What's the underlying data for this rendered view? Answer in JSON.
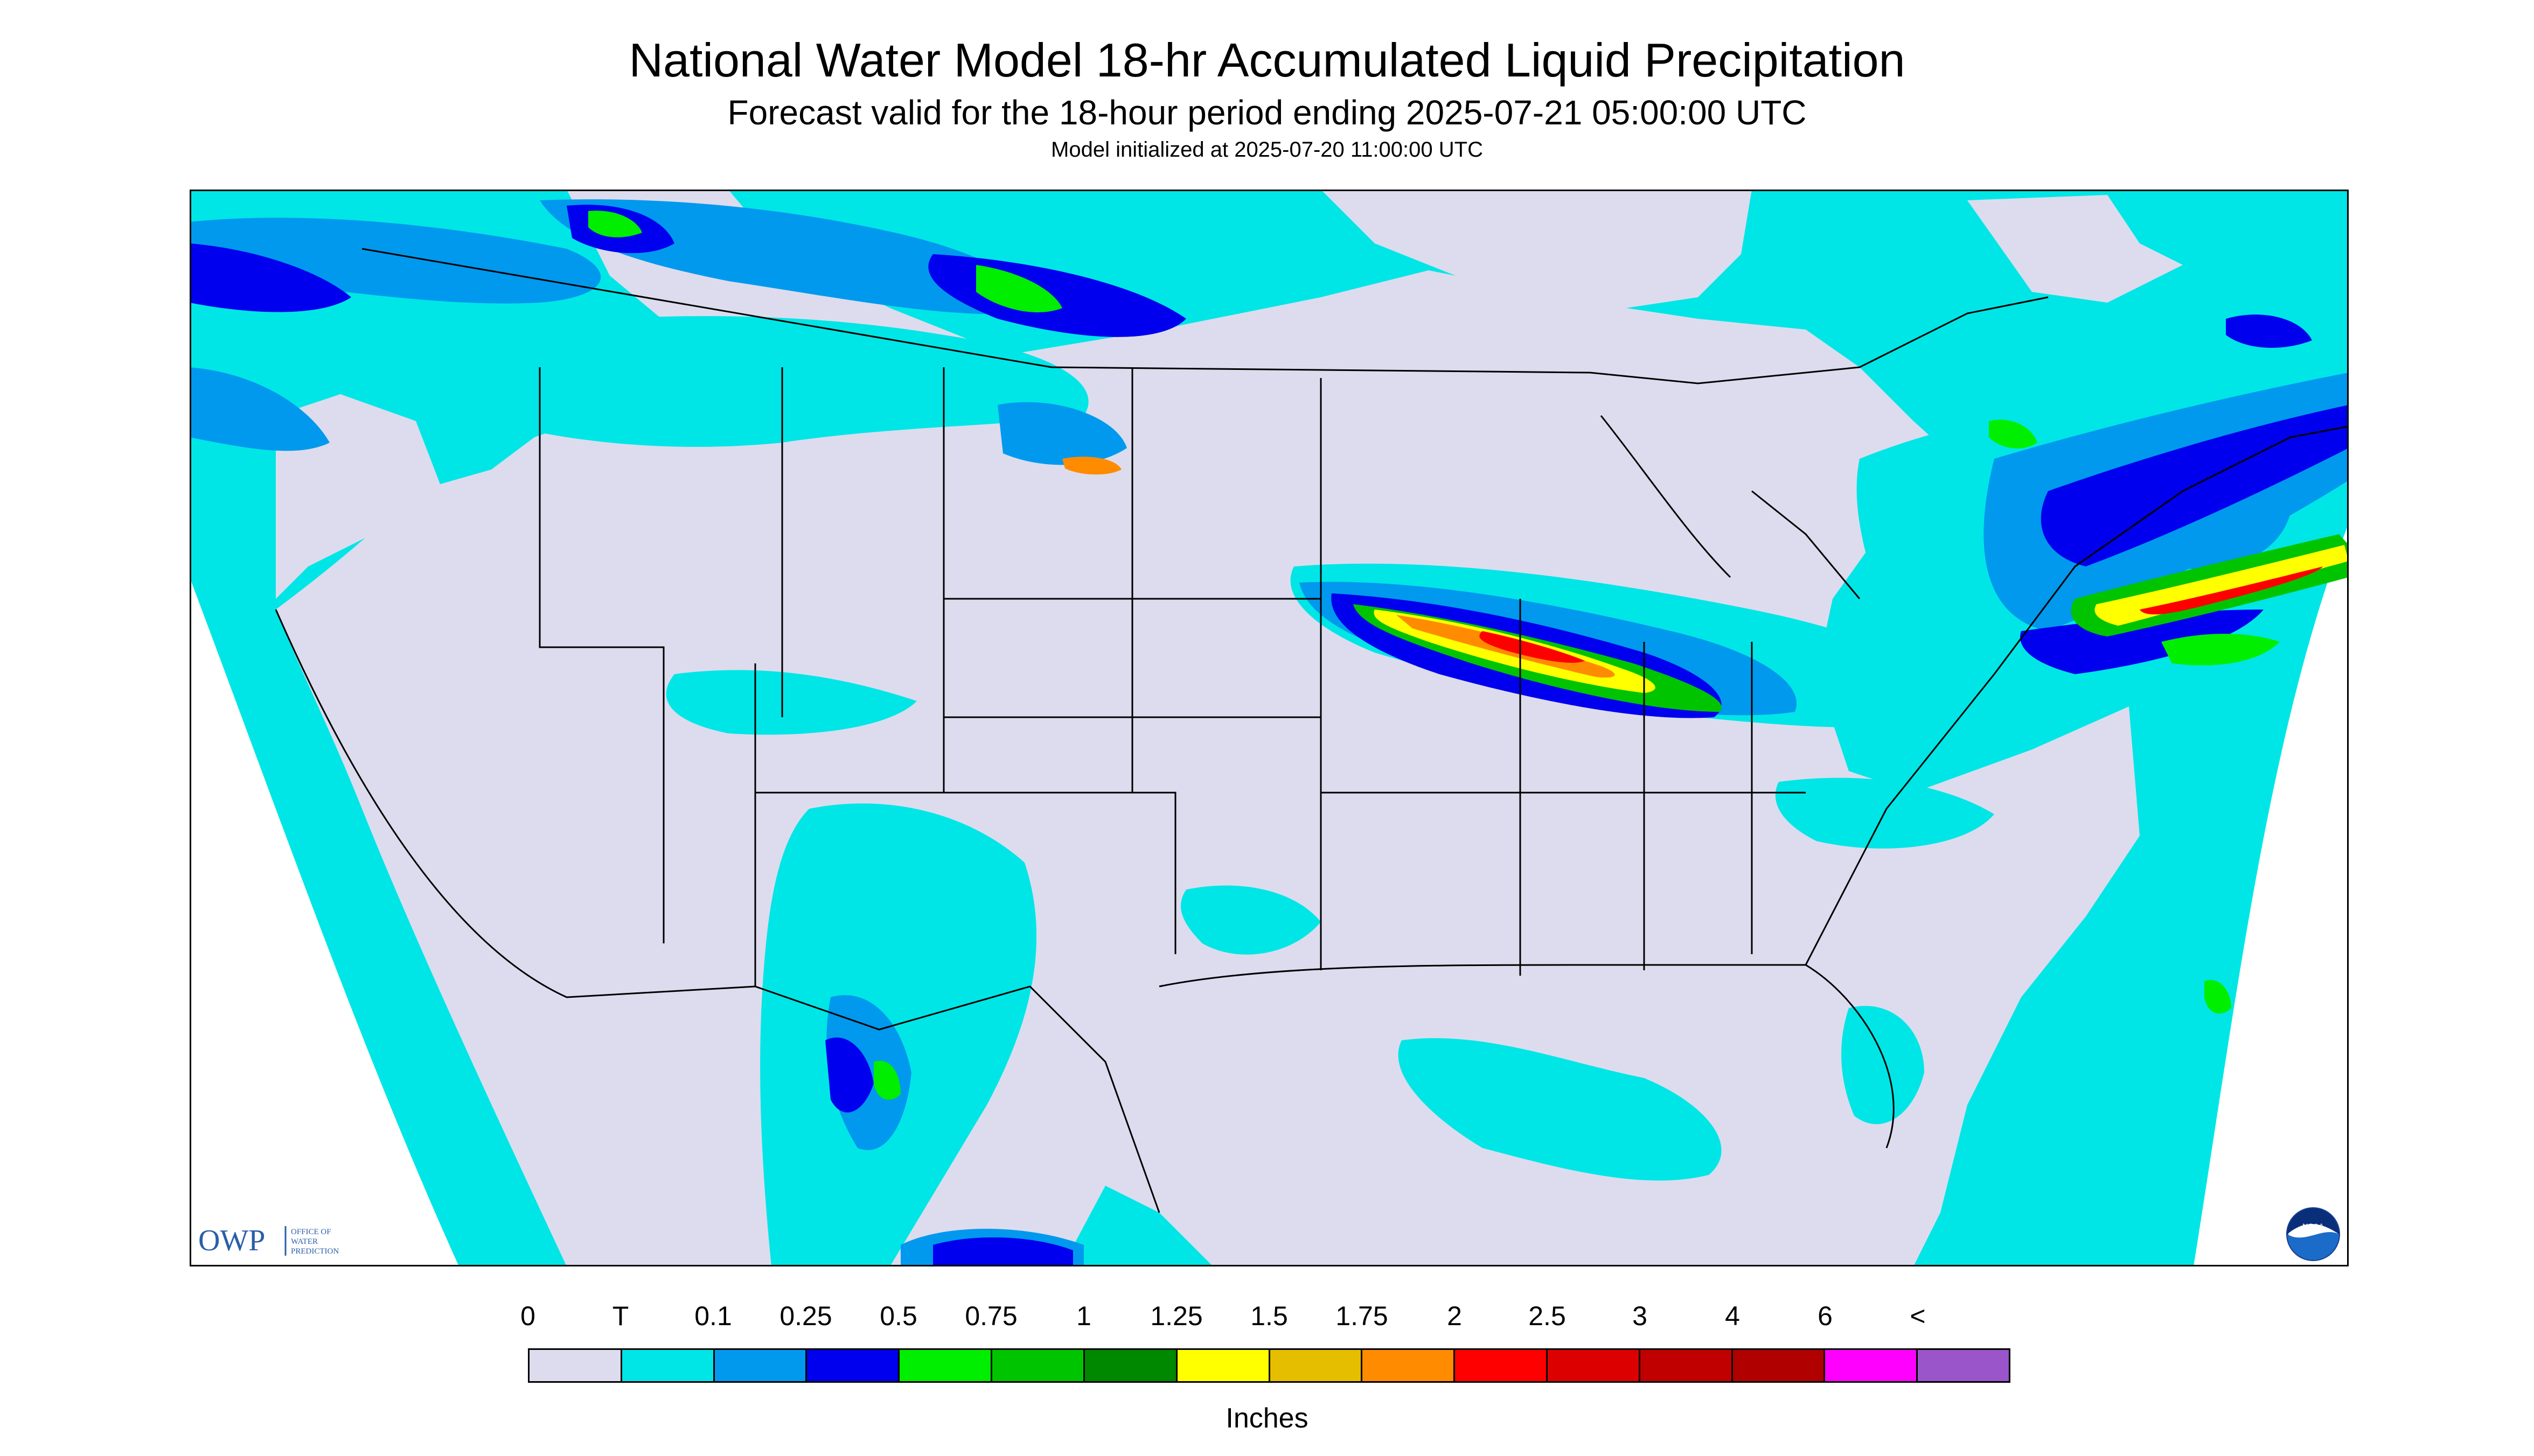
{
  "title": "National Water Model 18-hr Accumulated Liquid Precipitation",
  "subtitle": "Forecast valid for the 18-hour period ending 2025-07-21 05:00:00 UTC",
  "init": "Model initialized at 2025-07-20 11:00:00 UTC",
  "logo_owp": {
    "abbrev": "OWP",
    "line1": "OFFICE OF",
    "line2": "WATER",
    "line3": "PREDICTION"
  },
  "logo_noaa": {
    "text": "NOAA"
  },
  "legend": {
    "units": "Inches",
    "labels": [
      "0",
      "T",
      "0.1",
      "0.25",
      "0.5",
      "0.75",
      "1",
      "1.25",
      "1.5",
      "1.75",
      "2",
      "2.5",
      "3",
      "4",
      "6",
      "<"
    ],
    "colors": [
      "#dcdcee",
      "#00e6e6",
      "#0099ee",
      "#0000ee",
      "#00ee00",
      "#00c400",
      "#008800",
      "#ffff00",
      "#e6be00",
      "#ff8c00",
      "#ff0000",
      "#dd0000",
      "#c00000",
      "#b00000",
      "#ff00ff",
      "#9955c9"
    ]
  },
  "colors": {
    "out_of_domain": "#ffffff",
    "no_precip": "#dcdcee",
    "trace": "#00e6e6",
    "border_lines": "#000000"
  }
}
